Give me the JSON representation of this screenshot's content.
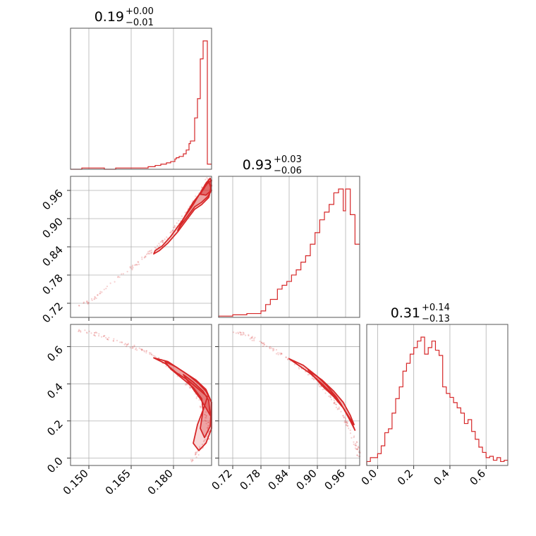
{
  "chart_data": {
    "type": "corner",
    "color": "#d62728",
    "panels": [
      {
        "id": "p00",
        "kind": "histogram",
        "title": {
          "value": "0.19",
          "plus": "+0.00",
          "minus": "−0.01"
        },
        "xlim": [
          0.1435,
          0.1935
        ],
        "ticks": [
          0.15,
          0.165,
          0.18
        ],
        "hist": {
          "x": [
            0.1435,
            0.1475,
            0.1515,
            0.1555,
            0.1595,
            0.1635,
            0.1675,
            0.171,
            0.1735,
            0.1755,
            0.1775,
            0.179,
            0.1805,
            0.181,
            0.182,
            0.1835,
            0.1845,
            0.1855,
            0.186,
            0.1875,
            0.1885,
            0.1895,
            0.1905,
            0.192,
            0.1935
          ],
          "y": [
            0,
            1,
            1,
            0,
            1,
            1,
            1,
            2,
            3,
            4,
            5,
            6,
            8,
            9,
            10,
            12,
            15,
            20,
            22,
            40,
            55,
            86,
            100,
            4
          ]
        }
      },
      {
        "id": "p10",
        "kind": "scatter",
        "xlim": [
          0.1435,
          0.1935
        ],
        "ylim": [
          0.69,
          0.99
        ],
        "xticks": [
          0.15,
          0.165,
          0.18
        ],
        "yticks": [
          0.72,
          0.78,
          0.84,
          0.9,
          0.96
        ],
        "yticklabels": [
          "0.72",
          "0.78",
          "0.84",
          "0.90",
          "0.96"
        ],
        "sample_curve": {
          "x": [
            0.146,
            0.152,
            0.16,
            0.166,
            0.171,
            0.175,
            0.179,
            0.183,
            0.186,
            0.189,
            0.191,
            0.1925
          ],
          "y": [
            0.71,
            0.73,
            0.775,
            0.8,
            0.825,
            0.845,
            0.87,
            0.9,
            0.925,
            0.95,
            0.97,
            0.985
          ]
        },
        "contours": [
          {
            "x": [
              0.1735,
              0.176,
              0.179,
              0.183,
              0.187,
              0.1895,
              0.1915,
              0.193,
              0.1935,
              0.1925,
              0.19,
              0.1875,
              0.185,
              0.1815,
              0.178,
              0.175,
              0.173,
              0.1735
            ],
            "y": [
              0.832,
              0.842,
              0.862,
              0.895,
              0.93,
              0.955,
              0.975,
              0.986,
              0.97,
              0.945,
              0.93,
              0.92,
              0.9,
              0.872,
              0.848,
              0.832,
              0.825,
              0.832
            ]
          },
          {
            "x": [
              0.1815,
              0.184,
              0.187,
              0.1905,
              0.1925,
              0.1935,
              0.192,
              0.19,
              0.1875,
              0.185,
              0.1825,
              0.1815
            ],
            "y": [
              0.875,
              0.905,
              0.935,
              0.962,
              0.98,
              0.96,
              0.946,
              0.935,
              0.925,
              0.905,
              0.885,
              0.875
            ]
          },
          {
            "x": [
              0.1895,
              0.1915,
              0.1935,
              0.193,
              0.1915,
              0.1895
            ],
            "y": [
              0.952,
              0.972,
              0.982,
              0.958,
              0.95,
              0.952
            ]
          }
        ]
      },
      {
        "id": "p11",
        "kind": "histogram",
        "title": {
          "value": "0.93",
          "plus": "+0.03",
          "minus": "−0.06"
        },
        "xlim": [
          0.69,
          0.99
        ],
        "ticks": [
          0.72,
          0.78,
          0.84,
          0.9,
          0.96
        ],
        "ticklabels": [
          "0.72",
          "0.78",
          "0.84",
          "0.90",
          "0.96"
        ],
        "hist": {
          "x": [
            0.69,
            0.705,
            0.72,
            0.735,
            0.75,
            0.77,
            0.78,
            0.79,
            0.8,
            0.815,
            0.825,
            0.835,
            0.845,
            0.855,
            0.865,
            0.875,
            0.885,
            0.895,
            0.905,
            0.915,
            0.925,
            0.935,
            0.945,
            0.955,
            0.96,
            0.97,
            0.98,
            0.99
          ],
          "y": [
            1,
            1,
            2,
            2,
            3,
            3,
            5,
            10,
            14,
            22,
            25,
            28,
            33,
            37,
            43,
            48,
            57,
            66,
            76,
            82,
            88,
            97,
            100,
            83,
            100,
            80,
            57
          ]
        }
      },
      {
        "id": "p20",
        "kind": "scatter",
        "xlim": [
          0.1435,
          0.1935
        ],
        "ylim": [
          -0.04,
          0.72
        ],
        "xticks": [
          0.15,
          0.165,
          0.18
        ],
        "xticklabels": [
          "0.150",
          "0.165",
          "0.180"
        ],
        "yticks": [
          0,
          0.2,
          0.4,
          0.6
        ],
        "yticklabels": [
          "0.0",
          "0.2",
          "0.4",
          "0.6"
        ],
        "sample_curve": {
          "x": [
            0.146,
            0.152,
            0.158,
            0.164,
            0.169,
            0.174,
            0.179,
            0.184,
            0.188,
            0.191,
            0.1925,
            0.192,
            0.189,
            0.186
          ],
          "y": [
            0.69,
            0.67,
            0.64,
            0.61,
            0.58,
            0.54,
            0.49,
            0.42,
            0.34,
            0.25,
            0.17,
            0.1,
            0.04,
            -0.02
          ]
        },
        "contours": [
          {
            "x": [
              0.173,
              0.178,
              0.183,
              0.188,
              0.1915,
              0.1935,
              0.1935,
              0.1915,
              0.189,
              0.187,
              0.1885,
              0.191,
              0.192,
              0.189,
              0.185,
              0.181,
              0.177,
              0.173
            ],
            "y": [
              0.54,
              0.52,
              0.47,
              0.42,
              0.37,
              0.3,
              0.16,
              0.08,
              0.04,
              0.08,
              0.18,
              0.28,
              0.33,
              0.37,
              0.42,
              0.46,
              0.51,
              0.54
            ]
          },
          {
            "x": [
              0.177,
              0.181,
              0.185,
              0.189,
              0.1915,
              0.1935,
              0.193,
              0.191,
              0.1895,
              0.1905,
              0.19,
              0.187,
              0.183,
              0.179,
              0.177
            ],
            "y": [
              0.52,
              0.49,
              0.45,
              0.4,
              0.36,
              0.3,
              0.17,
              0.11,
              0.16,
              0.26,
              0.32,
              0.38,
              0.43,
              0.48,
              0.52
            ]
          },
          {
            "x": [
              0.1835,
              0.187,
              0.1905,
              0.1925,
              0.193,
              0.1915,
              0.1895,
              0.1875,
              0.1835
            ],
            "y": [
              0.45,
              0.41,
              0.36,
              0.31,
              0.23,
              0.27,
              0.32,
              0.36,
              0.45
            ]
          }
        ]
      },
      {
        "id": "p21",
        "kind": "scatter",
        "xlim": [
          0.69,
          0.99
        ],
        "ylim": [
          -0.04,
          0.72
        ],
        "xticks": [
          0.72,
          0.78,
          0.84,
          0.9,
          0.96
        ],
        "xticklabels": [
          "0.72",
          "0.78",
          "0.84",
          "0.90",
          "0.96"
        ],
        "sample_curve": {
          "x": [
            0.72,
            0.75,
            0.78,
            0.81,
            0.84,
            0.87,
            0.9,
            0.92,
            0.94,
            0.96,
            0.975,
            0.985,
            0.99
          ],
          "y": [
            0.69,
            0.66,
            0.62,
            0.58,
            0.53,
            0.48,
            0.41,
            0.36,
            0.29,
            0.2,
            0.12,
            0.05,
            0.0
          ]
        },
        "contours": [
          {
            "x": [
              0.84,
              0.87,
              0.9,
              0.92,
              0.94,
              0.955,
              0.97,
              0.98,
              0.975,
              0.962,
              0.948,
              0.93,
              0.91,
              0.885,
              0.86,
              0.84
            ],
            "y": [
              0.535,
              0.5,
              0.44,
              0.39,
              0.33,
              0.27,
              0.2,
              0.15,
              0.18,
              0.24,
              0.3,
              0.35,
              0.4,
              0.455,
              0.5,
              0.535
            ]
          },
          {
            "x": [
              0.88,
              0.91,
              0.935,
              0.955,
              0.97,
              0.978,
              0.97,
              0.955,
              0.935,
              0.91,
              0.88
            ],
            "y": [
              0.475,
              0.42,
              0.36,
              0.3,
              0.23,
              0.18,
              0.21,
              0.27,
              0.33,
              0.39,
              0.475
            ]
          }
        ]
      },
      {
        "id": "p22",
        "kind": "histogram",
        "title": {
          "value": "0.31",
          "plus": "+0.14",
          "minus": "−0.13"
        },
        "xlim": [
          -0.06,
          0.72
        ],
        "ticks": [
          0,
          0.2,
          0.4,
          0.6
        ],
        "ticklabels": [
          "0.0",
          "0.2",
          "0.4",
          "0.6"
        ],
        "hist": {
          "x": [
            -0.06,
            -0.04,
            0.0,
            0.02,
            0.04,
            0.06,
            0.08,
            0.1,
            0.12,
            0.14,
            0.16,
            0.18,
            0.2,
            0.22,
            0.24,
            0.26,
            0.28,
            0.3,
            0.32,
            0.34,
            0.36,
            0.38,
            0.4,
            0.42,
            0.44,
            0.46,
            0.48,
            0.5,
            0.52,
            0.54,
            0.56,
            0.58,
            0.6,
            0.62,
            0.64,
            0.66,
            0.68,
            0.7,
            0.72
          ],
          "y": [
            3,
            6,
            9,
            15,
            25,
            28,
            40,
            51,
            60,
            72,
            78,
            85,
            90,
            95,
            98,
            85,
            90,
            95,
            88,
            84,
            60,
            55,
            52,
            48,
            44,
            40,
            32,
            35,
            26,
            20,
            14,
            10,
            6,
            7,
            4,
            6,
            3,
            4
          ]
        }
      }
    ]
  }
}
